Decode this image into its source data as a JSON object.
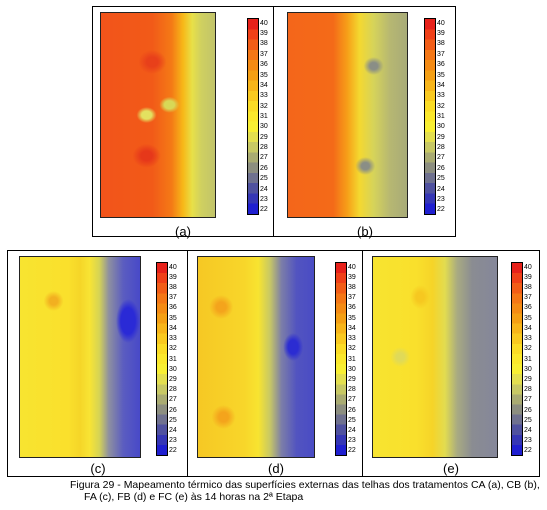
{
  "panels": [
    {
      "label": "(a)"
    },
    {
      "label": "(b)"
    },
    {
      "label": "(c)"
    },
    {
      "label": "(d)"
    },
    {
      "label": "(e)"
    }
  ],
  "colorbar": {
    "ticks": [
      "40",
      "39",
      "38",
      "37",
      "36",
      "35",
      "34",
      "33",
      "32",
      "31",
      "30",
      "29",
      "28",
      "27",
      "26",
      "25",
      "24",
      "23",
      "22"
    ],
    "colors": [
      "#e7211a",
      "#f04018",
      "#f25d17",
      "#f47716",
      "#f48b14",
      "#f49f14",
      "#f7b51a",
      "#f9c920",
      "#fbdc26",
      "#fbe82c",
      "#f8ef33",
      "#e3df4f",
      "#c7c864",
      "#a9ab72",
      "#8c8e80",
      "#6f718f",
      "#4f519f",
      "#3536b5",
      "#1f1fd0"
    ]
  },
  "caption": {
    "line1": "Figura 29 - Mapeamento térmico das superfícies externas das telhas dos tratamentos CA (a), CB (b),",
    "line2": "FA (c), FB (d) e FC (e) às 14 horas na 2ª Etapa"
  }
}
